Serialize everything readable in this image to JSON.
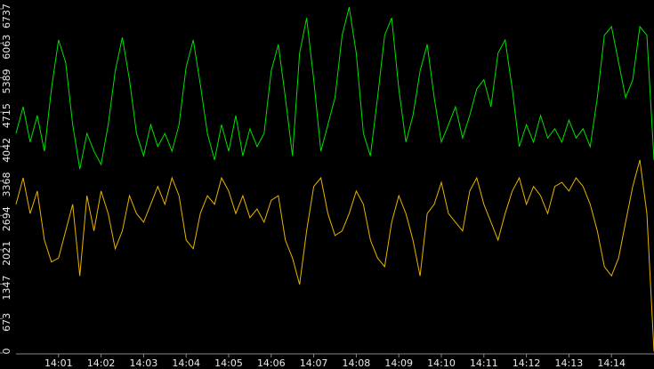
{
  "chart_data": {
    "type": "line",
    "categories": [
      null,
      null,
      null,
      null,
      null,
      null,
      "14:01",
      null,
      null,
      null,
      null,
      null,
      "14:02",
      null,
      null,
      null,
      null,
      null,
      "14:03",
      null,
      null,
      null,
      null,
      null,
      "14:04",
      null,
      null,
      null,
      null,
      null,
      "14:05",
      null,
      null,
      null,
      null,
      null,
      "14:06",
      null,
      null,
      null,
      null,
      null,
      "14:07",
      null,
      null,
      null,
      null,
      null,
      "14:08",
      null,
      null,
      null,
      null,
      null,
      "14:09",
      null,
      null,
      null,
      null,
      null,
      "14:10",
      null,
      null,
      null,
      null,
      null,
      "14:11",
      null,
      null,
      null,
      null,
      null,
      "14:12",
      null,
      null,
      null,
      null,
      null,
      "14:13",
      null,
      null,
      null,
      null,
      null,
      "14:14",
      null,
      null,
      null,
      null,
      null,
      null
    ],
    "series": [
      {
        "color": "#00e000",
        "values": [
          4300,
          4820,
          4130,
          4650,
          3950,
          5170,
          6130,
          5690,
          4470,
          3600,
          4300,
          3950,
          3690,
          4470,
          5520,
          6180,
          5350,
          4300,
          3860,
          4470,
          4040,
          4300,
          3950,
          4470,
          5600,
          6130,
          5260,
          4300,
          3780,
          4470,
          3950,
          4650,
          3860,
          4390,
          4040,
          4300,
          5520,
          6040,
          5000,
          3860,
          5870,
          6560,
          5350,
          3950,
          4470,
          5000,
          6220,
          6770,
          5870,
          4300,
          3860,
          5000,
          6220,
          6560,
          5170,
          4130,
          4650,
          5520,
          6040,
          5000,
          4130,
          4470,
          4820,
          4210,
          4650,
          5170,
          5350,
          4820,
          5870,
          6130,
          5170,
          4040,
          4470,
          4130,
          4650,
          4210,
          4390,
          4130,
          4560,
          4210,
          4390,
          4040,
          5000,
          6220,
          6390,
          5690,
          5000,
          5350,
          6390,
          6220,
          3780
        ]
      },
      {
        "color": "#e8b400",
        "values": [
          2910,
          3430,
          2730,
          3170,
          2210,
          1780,
          1860,
          2390,
          2910,
          1510,
          3080,
          2390,
          3170,
          2730,
          2040,
          2390,
          3080,
          2730,
          2560,
          2910,
          3260,
          2910,
          3430,
          3080,
          2210,
          2040,
          2730,
          3080,
          2910,
          3430,
          3170,
          2730,
          3080,
          2650,
          2820,
          2560,
          2990,
          3080,
          2210,
          1860,
          1340,
          2390,
          3260,
          3430,
          2730,
          2300,
          2390,
          2730,
          3170,
          2910,
          2210,
          1860,
          1690,
          2560,
          3080,
          2730,
          2210,
          1510,
          2730,
          2910,
          3340,
          2730,
          2560,
          2390,
          3170,
          3430,
          2910,
          2560,
          2210,
          2730,
          3170,
          3430,
          2910,
          3260,
          3080,
          2730,
          3260,
          3340,
          3170,
          3430,
          3260,
          2910,
          2390,
          1690,
          1510,
          1860,
          2560,
          3260,
          3780,
          2730,
          30
        ]
      }
    ],
    "ylim": [
      0,
      6737
    ],
    "yticks": [
      0,
      673,
      1347,
      2021,
      2694,
      3368,
      4042,
      4715,
      5389,
      6063,
      6737
    ]
  }
}
